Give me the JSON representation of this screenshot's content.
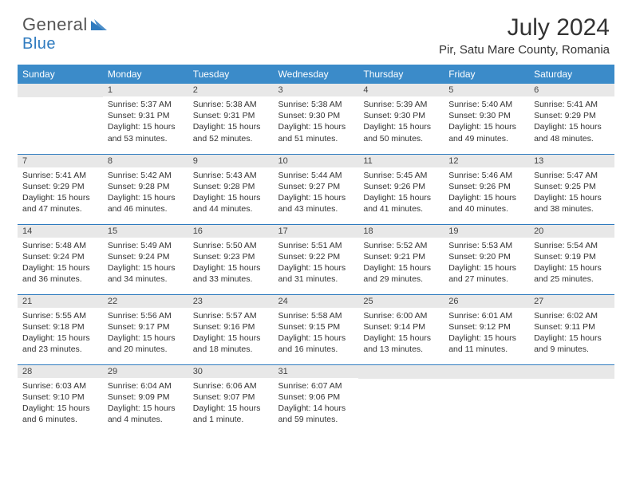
{
  "logo": {
    "word1": "General",
    "word2": "Blue"
  },
  "title": "July 2024",
  "location": "Pir, Satu Mare County, Romania",
  "colors": {
    "header_bg": "#3b8bc9",
    "rule": "#2f7bbf",
    "daynum_bg": "#e8e8e8",
    "page_bg": "#ffffff",
    "text": "#333333",
    "logo_gray": "#555555",
    "logo_blue": "#2f7bbf"
  },
  "weekdays": [
    "Sunday",
    "Monday",
    "Tuesday",
    "Wednesday",
    "Thursday",
    "Friday",
    "Saturday"
  ],
  "weeks": [
    [
      null,
      {
        "n": "1",
        "sr": "5:37 AM",
        "ss": "9:31 PM",
        "dl": "15 hours and 53 minutes."
      },
      {
        "n": "2",
        "sr": "5:38 AM",
        "ss": "9:31 PM",
        "dl": "15 hours and 52 minutes."
      },
      {
        "n": "3",
        "sr": "5:38 AM",
        "ss": "9:30 PM",
        "dl": "15 hours and 51 minutes."
      },
      {
        "n": "4",
        "sr": "5:39 AM",
        "ss": "9:30 PM",
        "dl": "15 hours and 50 minutes."
      },
      {
        "n": "5",
        "sr": "5:40 AM",
        "ss": "9:30 PM",
        "dl": "15 hours and 49 minutes."
      },
      {
        "n": "6",
        "sr": "5:41 AM",
        "ss": "9:29 PM",
        "dl": "15 hours and 48 minutes."
      }
    ],
    [
      {
        "n": "7",
        "sr": "5:41 AM",
        "ss": "9:29 PM",
        "dl": "15 hours and 47 minutes."
      },
      {
        "n": "8",
        "sr": "5:42 AM",
        "ss": "9:28 PM",
        "dl": "15 hours and 46 minutes."
      },
      {
        "n": "9",
        "sr": "5:43 AM",
        "ss": "9:28 PM",
        "dl": "15 hours and 44 minutes."
      },
      {
        "n": "10",
        "sr": "5:44 AM",
        "ss": "9:27 PM",
        "dl": "15 hours and 43 minutes."
      },
      {
        "n": "11",
        "sr": "5:45 AM",
        "ss": "9:26 PM",
        "dl": "15 hours and 41 minutes."
      },
      {
        "n": "12",
        "sr": "5:46 AM",
        "ss": "9:26 PM",
        "dl": "15 hours and 40 minutes."
      },
      {
        "n": "13",
        "sr": "5:47 AM",
        "ss": "9:25 PM",
        "dl": "15 hours and 38 minutes."
      }
    ],
    [
      {
        "n": "14",
        "sr": "5:48 AM",
        "ss": "9:24 PM",
        "dl": "15 hours and 36 minutes."
      },
      {
        "n": "15",
        "sr": "5:49 AM",
        "ss": "9:24 PM",
        "dl": "15 hours and 34 minutes."
      },
      {
        "n": "16",
        "sr": "5:50 AM",
        "ss": "9:23 PM",
        "dl": "15 hours and 33 minutes."
      },
      {
        "n": "17",
        "sr": "5:51 AM",
        "ss": "9:22 PM",
        "dl": "15 hours and 31 minutes."
      },
      {
        "n": "18",
        "sr": "5:52 AM",
        "ss": "9:21 PM",
        "dl": "15 hours and 29 minutes."
      },
      {
        "n": "19",
        "sr": "5:53 AM",
        "ss": "9:20 PM",
        "dl": "15 hours and 27 minutes."
      },
      {
        "n": "20",
        "sr": "5:54 AM",
        "ss": "9:19 PM",
        "dl": "15 hours and 25 minutes."
      }
    ],
    [
      {
        "n": "21",
        "sr": "5:55 AM",
        "ss": "9:18 PM",
        "dl": "15 hours and 23 minutes."
      },
      {
        "n": "22",
        "sr": "5:56 AM",
        "ss": "9:17 PM",
        "dl": "15 hours and 20 minutes."
      },
      {
        "n": "23",
        "sr": "5:57 AM",
        "ss": "9:16 PM",
        "dl": "15 hours and 18 minutes."
      },
      {
        "n": "24",
        "sr": "5:58 AM",
        "ss": "9:15 PM",
        "dl": "15 hours and 16 minutes."
      },
      {
        "n": "25",
        "sr": "6:00 AM",
        "ss": "9:14 PM",
        "dl": "15 hours and 13 minutes."
      },
      {
        "n": "26",
        "sr": "6:01 AM",
        "ss": "9:12 PM",
        "dl": "15 hours and 11 minutes."
      },
      {
        "n": "27",
        "sr": "6:02 AM",
        "ss": "9:11 PM",
        "dl": "15 hours and 9 minutes."
      }
    ],
    [
      {
        "n": "28",
        "sr": "6:03 AM",
        "ss": "9:10 PM",
        "dl": "15 hours and 6 minutes."
      },
      {
        "n": "29",
        "sr": "6:04 AM",
        "ss": "9:09 PM",
        "dl": "15 hours and 4 minutes."
      },
      {
        "n": "30",
        "sr": "6:06 AM",
        "ss": "9:07 PM",
        "dl": "15 hours and 1 minute."
      },
      {
        "n": "31",
        "sr": "6:07 AM",
        "ss": "9:06 PM",
        "dl": "14 hours and 59 minutes."
      },
      null,
      null,
      null
    ]
  ],
  "labels": {
    "sunrise": "Sunrise:",
    "sunset": "Sunset:",
    "daylight": "Daylight:"
  }
}
